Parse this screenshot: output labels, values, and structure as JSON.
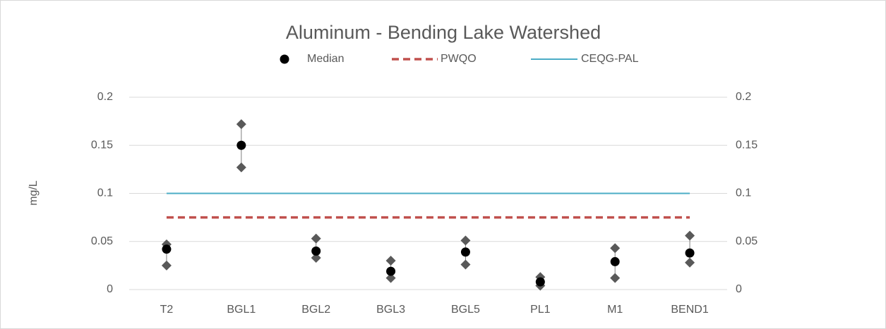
{
  "chart_data": {
    "type": "dot-range",
    "title": "Aluminum - Bending Lake Watershed",
    "y_label": "mg/L",
    "categories": [
      "T2",
      "BGL1",
      "BGL2",
      "BGL3",
      "BGL5",
      "PL1",
      "M1",
      "BEND1"
    ],
    "series": [
      {
        "name": "Median",
        "color": "#000000",
        "values": [
          0.042,
          0.15,
          0.04,
          0.019,
          0.039,
          0.008,
          0.029,
          0.038
        ]
      }
    ],
    "high": {
      "color": "#595959",
      "values": [
        0.047,
        0.172,
        0.053,
        0.03,
        0.051,
        0.013,
        0.043,
        0.056
      ]
    },
    "low": {
      "color": "#595959",
      "values": [
        0.025,
        0.127,
        0.033,
        0.012,
        0.026,
        0.004,
        0.012,
        0.028
      ]
    },
    "reference_lines": [
      {
        "name": "PWQO",
        "value": 0.075,
        "color": "#c0504d",
        "dashed": true
      },
      {
        "name": "CEQG-PAL",
        "value": 0.1,
        "color": "#4bacc6",
        "dashed": false
      }
    ],
    "ylim": [
      0,
      0.2
    ],
    "yticks": [
      0,
      0.05,
      0.1,
      0.15,
      0.2
    ],
    "y2lim": [
      0,
      0.2
    ],
    "y2ticks": [
      0,
      0.05,
      0.1,
      0.15,
      0.2
    ],
    "grid": true
  }
}
